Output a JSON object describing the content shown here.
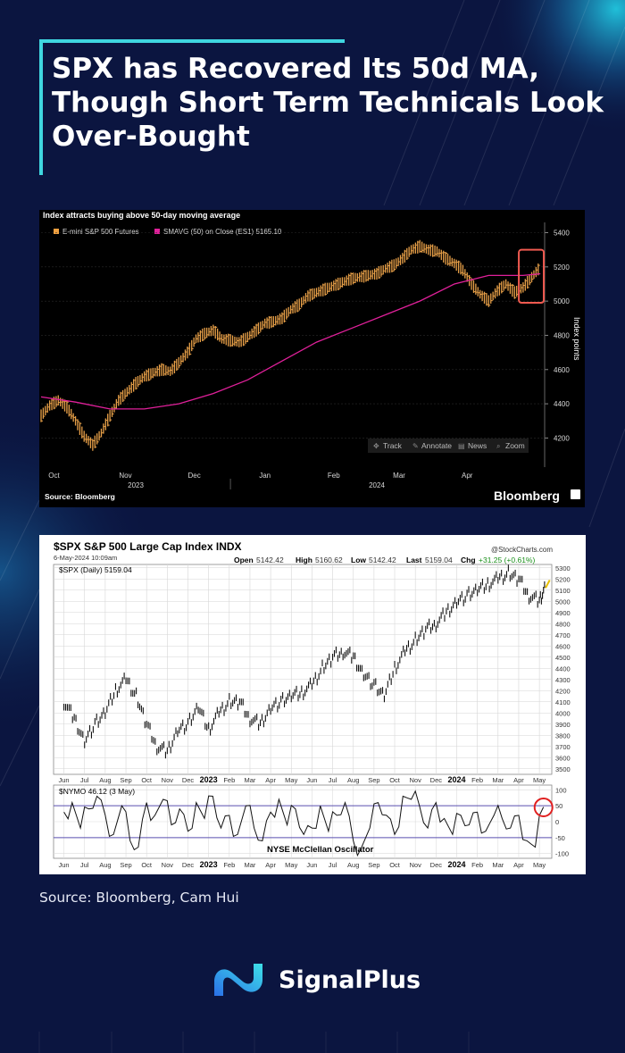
{
  "header": {
    "title_lines": [
      "SPX has Recovered Its 50d MA,",
      "Though Short Term Technicals Look",
      "Over-Bought"
    ]
  },
  "chart_data": [
    {
      "type": "line",
      "title": "Index attracts buying above 50-day moving average",
      "legend": [
        {
          "label": "E-mini S&P 500 Futures",
          "color": "#f0a040"
        },
        {
          "label": "SMAVG (50)  on Close (ES1) 5165.10",
          "color": "#e0209a"
        }
      ],
      "legend_placement": "top-left",
      "ylabel": "Index points",
      "y_ticks": [
        "5400",
        "5200",
        "5000",
        "4800",
        "4600",
        "4400",
        "4200"
      ],
      "y_tick_values": [
        5400,
        5200,
        5000,
        4800,
        4600,
        4400,
        4200
      ],
      "ylim": [
        4030,
        5460
      ],
      "x_ticks": [
        "Oct",
        "Nov",
        "Dec",
        "Jan",
        "Feb",
        "Mar",
        "Apr"
      ],
      "x_years": [
        "2023",
        "2024"
      ],
      "grid": true,
      "toolbar": [
        "Track",
        "Annotate",
        "News",
        "Zoom"
      ],
      "source": "Source: Bloomberg",
      "brand": "Bloomberg",
      "highlight": {
        "color": "#f05a50",
        "x_range": [
          55.5,
          58.4
        ],
        "y_range": [
          4990,
          5300
        ]
      },
      "x_domain": [
        0,
        58.5
      ],
      "series": [
        {
          "name": "E-mini S&P 500 Futures",
          "style": "bars",
          "x": [
            0,
            1,
            2,
            3,
            4,
            5,
            6,
            7,
            8,
            9,
            10,
            11,
            12,
            13,
            14,
            15,
            16,
            17,
            18,
            19,
            20,
            21,
            22,
            23,
            24,
            25,
            26,
            27,
            28,
            29,
            30,
            31,
            32,
            33,
            34,
            35,
            36,
            37,
            38,
            39,
            40,
            41,
            42,
            43,
            44,
            45,
            46,
            47,
            48,
            49,
            50,
            51,
            52,
            53,
            54,
            55,
            56,
            57,
            58
          ],
          "values": [
            4330,
            4390,
            4420,
            4380,
            4300,
            4210,
            4160,
            4230,
            4330,
            4420,
            4470,
            4520,
            4560,
            4580,
            4600,
            4590,
            4640,
            4700,
            4780,
            4810,
            4830,
            4780,
            4770,
            4760,
            4790,
            4830,
            4870,
            4880,
            4900,
            4950,
            4980,
            5030,
            5050,
            5070,
            5090,
            5110,
            5130,
            5140,
            5150,
            5160,
            5190,
            5210,
            5250,
            5300,
            5320,
            5300,
            5290,
            5250,
            5220,
            5180,
            5100,
            5040,
            5000,
            5060,
            5100,
            5050,
            5080,
            5140,
            5200
          ]
        },
        {
          "name": "SMAVG (50)",
          "style": "line",
          "x": [
            0,
            4,
            8,
            12,
            16,
            20,
            24,
            28,
            32,
            36,
            40,
            44,
            48,
            52,
            56,
            58
          ],
          "values": [
            4440,
            4410,
            4370,
            4370,
            4400,
            4460,
            4540,
            4650,
            4760,
            4840,
            4920,
            5000,
            5100,
            5150,
            5150,
            5160
          ]
        }
      ]
    },
    {
      "type": "line",
      "title": "$SPX S&P 500 Large Cap Index INDX",
      "subtitle": "6-May-2024 10:09am",
      "provider": "@StockCharts.com",
      "ohlc": {
        "open_label": "Open",
        "open": "5142.42",
        "high_label": "High",
        "high": "5160.62",
        "low_label": "Low",
        "low": "5142.42",
        "last_label": "Last",
        "last": "5159.04",
        "chg_label": "Chg",
        "chg": "+31.25 (+0.61%)"
      },
      "legend": [
        {
          "label": "$SPX (Daily) 5159.04",
          "color": "#000000"
        }
      ],
      "y_ticks": [
        "5300",
        "5200",
        "5100",
        "5000",
        "4900",
        "4800",
        "4700",
        "4600",
        "4500",
        "4400",
        "4300",
        "4200",
        "4100",
        "4000",
        "3900",
        "3800",
        "3700",
        "3600",
        "3500"
      ],
      "y_tick_values": [
        5300,
        5200,
        5100,
        5000,
        4900,
        4800,
        4700,
        4600,
        4500,
        4400,
        4300,
        4200,
        4100,
        4000,
        3900,
        3800,
        3700,
        3600,
        3500
      ],
      "ylim": [
        3450,
        5330
      ],
      "x_ticks": [
        "Jun",
        "Jul",
        "Aug",
        "Sep",
        "Oct",
        "Nov",
        "Dec",
        "2023",
        "Feb",
        "Mar",
        "Apr",
        "May",
        "Jun",
        "Jul",
        "Aug",
        "Sep",
        "Oct",
        "Nov",
        "Dec",
        "2024",
        "Feb",
        "Mar",
        "Apr",
        "May"
      ],
      "x_bold": [
        "2023",
        "2024"
      ],
      "x_domain": [
        -0.5,
        23.6
      ],
      "grid": true,
      "series": [
        {
          "name": "$SPX (Daily) 5159.04",
          "x": [
            0,
            0.5,
            1,
            1.5,
            2,
            2.5,
            3,
            3.5,
            4,
            4.5,
            5,
            5.5,
            6,
            6.5,
            7,
            7.5,
            8,
            8.5,
            9,
            9.5,
            10,
            10.5,
            11,
            11.5,
            12,
            12.5,
            13,
            13.5,
            14,
            14.5,
            15,
            15.5,
            16,
            16.5,
            17,
            17.5,
            18,
            18.5,
            19,
            19.5,
            20,
            20.5,
            21,
            21.5,
            22,
            22.5,
            23,
            23.3
          ],
          "values": [
            4100,
            3950,
            3750,
            3900,
            4000,
            4200,
            4300,
            4150,
            3900,
            3700,
            3650,
            3850,
            3900,
            4050,
            3850,
            4000,
            4100,
            4100,
            3950,
            3900,
            4050,
            4100,
            4150,
            4180,
            4250,
            4400,
            4500,
            4550,
            4500,
            4350,
            4250,
            4150,
            4400,
            4550,
            4650,
            4750,
            4800,
            4900,
            5000,
            5050,
            5100,
            5150,
            5200,
            5250,
            5200,
            5050,
            5000,
            5150
          ]
        }
      ]
    },
    {
      "type": "line",
      "title": "$NYMO 46.12 (3 May)",
      "annotation": "NYSE McClellan Oscillator",
      "y_ticks": [
        "100",
        "50",
        "0",
        "-50",
        "-100"
      ],
      "y_tick_values": [
        100,
        50,
        0,
        -50,
        -100
      ],
      "ylim": [
        -115,
        115
      ],
      "reference_lines": [
        50,
        -50
      ],
      "x_ticks": [
        "Jun",
        "Jul",
        "Aug",
        "Sep",
        "Oct",
        "Nov",
        "Dec",
        "2023",
        "Feb",
        "Mar",
        "Apr",
        "May",
        "Jun",
        "Jul",
        "Aug",
        "Sep",
        "Oct",
        "Nov",
        "Dec",
        "2024",
        "Feb",
        "Mar",
        "Apr",
        "May"
      ],
      "x_bold": [
        "2023",
        "2024"
      ],
      "x_domain": [
        -0.5,
        23.6
      ],
      "highlight": {
        "color": "#e02020",
        "x": 23.2,
        "y": 45
      },
      "series": [
        {
          "name": "$NYMO",
          "x": [
            0,
            0.4,
            0.8,
            1.2,
            1.6,
            2,
            2.4,
            2.8,
            3.2,
            3.6,
            4,
            4.4,
            4.8,
            5.2,
            5.6,
            6,
            6.4,
            6.8,
            7.2,
            7.6,
            8,
            8.4,
            8.8,
            9.2,
            9.6,
            10,
            10.4,
            10.8,
            11.2,
            11.6,
            12,
            12.4,
            12.8,
            13.2,
            13.6,
            14,
            14.4,
            14.8,
            15.2,
            15.6,
            16,
            16.4,
            16.8,
            17.2,
            17.6,
            18,
            18.4,
            18.8,
            19.2,
            19.6,
            20,
            20.4,
            20.8,
            21.2,
            21.6,
            22,
            22.4,
            22.8,
            23.2
          ],
          "values": [
            30,
            60,
            -20,
            40,
            80,
            20,
            -40,
            50,
            -60,
            -80,
            60,
            20,
            70,
            -10,
            40,
            -30,
            60,
            10,
            80,
            -20,
            20,
            -40,
            50,
            -20,
            -60,
            30,
            70,
            -10,
            40,
            -40,
            -20,
            50,
            -30,
            20,
            60,
            -60,
            -80,
            -20,
            60,
            20,
            -40,
            80,
            70,
            50,
            -20,
            60,
            10,
            -40,
            20,
            -10,
            30,
            -30,
            20,
            10,
            -20,
            20,
            -60,
            -80,
            46
          ]
        }
      ]
    }
  ],
  "source_line": "Source: Bloomberg, Cam Hui",
  "brand": {
    "name": "SignalPlus"
  }
}
